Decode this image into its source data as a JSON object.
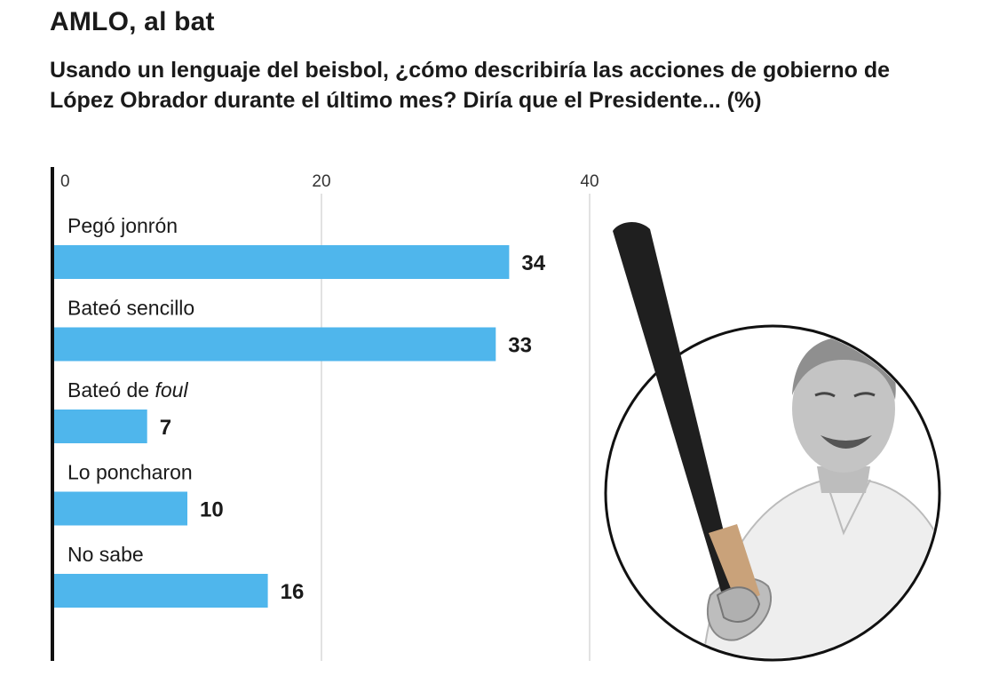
{
  "title": "AMLO, al bat",
  "subtitle": "Usando un lenguaje del beisbol, ¿cómo describiría las acciones de gobierno de López Obrador durante el último mes? Diría que el Presidente... (%)",
  "colors": {
    "bar": "#4fb6ec",
    "axis": "#111111",
    "grid": "#d9d9d9"
  },
  "chart_data": {
    "type": "bar",
    "orientation": "horizontal",
    "categories": [
      {
        "prefix": "Pegó jonrón",
        "italic": ""
      },
      {
        "prefix": "Bateó sencillo",
        "italic": ""
      },
      {
        "prefix": "Bateó de ",
        "italic": "foul"
      },
      {
        "prefix": "Lo poncharon",
        "italic": ""
      },
      {
        "prefix": "No sabe",
        "italic": ""
      }
    ],
    "values": [
      34,
      33,
      7,
      10,
      16
    ],
    "xticks": [
      "0",
      "20",
      "40"
    ],
    "xlim": [
      0,
      40
    ],
    "grid": true
  },
  "illustration": "man-with-baseball-bat-photo"
}
